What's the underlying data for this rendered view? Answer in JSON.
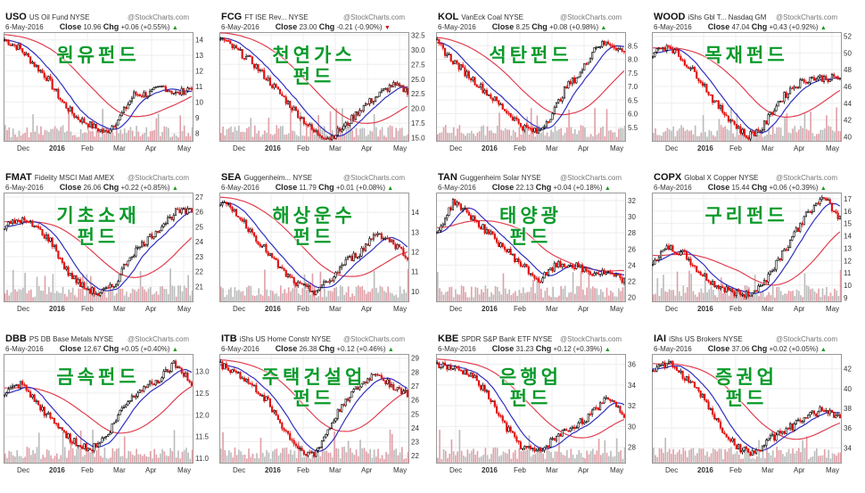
{
  "watermark": "@StockCharts.com",
  "date": "6-May-2016",
  "close_label": "Close",
  "chg_label": "Chg",
  "x_ticks": [
    "Dec",
    "2016",
    "Feb",
    "Mar",
    "Apr",
    "May"
  ],
  "colors": {
    "ma_short": "#3030c0",
    "ma_long": "#e04050",
    "up": "#000000",
    "down": "#e01010",
    "volume": "#e0a0a8",
    "label": "#0a9a2a"
  },
  "chart_data": [
    {
      "type": "candlestick",
      "symbol": "USO",
      "name": "US Oil Fund",
      "exchange": "NYSE",
      "close": "10.96",
      "chg": "+0.06 (+0.55%)",
      "dir": "up",
      "label": "원유펀드",
      "ylim": [
        7.5,
        14.5
      ],
      "y_ticks": [
        "14",
        "13",
        "12",
        "11",
        "10",
        "9",
        "8"
      ],
      "price_path": [
        14,
        13.5,
        12.5,
        11.5,
        10,
        9,
        8.5,
        8,
        9,
        10.5,
        10.5,
        11,
        10.5,
        11
      ]
    },
    {
      "type": "candlestick",
      "symbol": "FCG",
      "name": "FT ISE Rev...",
      "exchange": "NYSE",
      "close": "23.00",
      "chg": "-0.21 (-0.90%)",
      "dir": "down",
      "label": "천연가스 펀드",
      "ylim": [
        14.5,
        33
      ],
      "y_ticks": [
        "32.5",
        "30.0",
        "27.5",
        "25.0",
        "22.5",
        "20.0",
        "17.5",
        "15.0"
      ],
      "price_path": [
        32,
        30,
        28,
        25,
        22,
        19,
        16,
        15,
        17,
        20,
        22,
        24,
        23
      ]
    },
    {
      "type": "candlestick",
      "symbol": "KOL",
      "name": "VanEck Coal",
      "exchange": "NYSE",
      "close": "8.25",
      "chg": "+0.08 (+0.98%)",
      "dir": "up",
      "label": "석탄펀드",
      "ylim": [
        5,
        9
      ],
      "y_ticks": [
        "8.5",
        "8.0",
        "7.5",
        "7.0",
        "6.5",
        "6.0",
        "5.5"
      ],
      "price_path": [
        8.6,
        8,
        7.5,
        7,
        6.5,
        6,
        5.5,
        5.3,
        6,
        7,
        7.5,
        8.5,
        8.6,
        8.25
      ]
    },
    {
      "type": "candlestick",
      "symbol": "WOOD",
      "name": "iShs Gbl T...",
      "exchange": "Nasdaq GM",
      "close": "47.04",
      "chg": "+0.43 (+0.92%)",
      "dir": "up",
      "label": "목재펀드",
      "ylim": [
        39.5,
        52.5
      ],
      "y_ticks": [
        "52",
        "50",
        "48",
        "46",
        "44",
        "42",
        "40"
      ],
      "price_path": [
        50,
        51,
        49,
        47,
        44,
        42,
        40,
        41,
        44,
        46,
        47,
        47,
        47
      ]
    },
    {
      "type": "candlestick",
      "symbol": "FMAT",
      "name": "Fidelity MSCI Matl",
      "exchange": "AMEX",
      "close": "26.06",
      "chg": "+0.22 (+0.85%)",
      "dir": "up",
      "label": "기초소재 펀드",
      "ylim": [
        20,
        27.3
      ],
      "y_ticks": [
        "27",
        "26",
        "25",
        "24",
        "23",
        "22",
        "21"
      ],
      "price_path": [
        25,
        25.5,
        25,
        24,
        22,
        21,
        20.5,
        21,
        23,
        24,
        25,
        26,
        26
      ]
    },
    {
      "type": "candlestick",
      "symbol": "SEA",
      "name": "Guggenheim...",
      "exchange": "NYSE",
      "close": "11.79",
      "chg": "+0.01 (+0.08%)",
      "dir": "up",
      "label": "해상운수 펀드",
      "ylim": [
        9.5,
        15
      ],
      "y_ticks": [
        "14",
        "13",
        "12",
        "11",
        "10"
      ],
      "price_path": [
        14.5,
        14,
        13,
        12,
        11,
        10.3,
        10,
        10.5,
        11.5,
        12,
        13,
        12.5,
        11.8
      ]
    },
    {
      "type": "candlestick",
      "symbol": "TAN",
      "name": "Guggenheim Solar",
      "exchange": "NYSE",
      "close": "22.13",
      "chg": "+0.04 (+0.18%)",
      "dir": "up",
      "label": "태양광 펀드",
      "ylim": [
        19.5,
        33
      ],
      "y_ticks": [
        "32",
        "30",
        "28",
        "26",
        "24",
        "22",
        "20"
      ],
      "price_path": [
        28,
        32,
        30,
        28,
        26,
        24,
        22,
        24,
        24,
        23,
        23,
        22
      ]
    },
    {
      "type": "candlestick",
      "symbol": "COPX",
      "name": "Global X Copper",
      "exchange": "NYSE",
      "close": "15.44",
      "chg": "+0.06 (+0.39%)",
      "dir": "up",
      "label": "구리펀드",
      "ylim": [
        8.7,
        17.5
      ],
      "y_ticks": [
        "17",
        "16",
        "15",
        "14",
        "13",
        "12",
        "11",
        "10",
        "9"
      ],
      "price_path": [
        12,
        13,
        12.5,
        11,
        10,
        9.5,
        9.2,
        10,
        12,
        14,
        16,
        17,
        15.4
      ]
    },
    {
      "type": "candlestick",
      "symbol": "DBB",
      "name": "PS DB Base Metals",
      "exchange": "NYSE",
      "close": "12.67",
      "chg": "+0.05 (+0.40%)",
      "dir": "up",
      "label": "금속펀드",
      "ylim": [
        10.9,
        13.4
      ],
      "y_ticks": [
        "13.0",
        "12.5",
        "12.0",
        "11.5",
        "11.0"
      ],
      "price_path": [
        12.5,
        12.7,
        12.2,
        11.8,
        11.4,
        11.2,
        11.5,
        12.2,
        12.6,
        12.8,
        13.2,
        12.7
      ]
    },
    {
      "type": "candlestick",
      "symbol": "ITB",
      "name": "iShs US Home Constr",
      "exchange": "NYSE",
      "close": "26.38",
      "chg": "+0.12 (+0.46%)",
      "dir": "up",
      "label": "주택건설업 펀드",
      "ylim": [
        21.5,
        29.3
      ],
      "y_ticks": [
        "29",
        "28",
        "27",
        "26",
        "25",
        "24",
        "23",
        "22"
      ],
      "price_path": [
        28.5,
        28,
        27,
        26,
        24,
        22.5,
        22,
        24,
        26,
        27,
        28,
        27,
        26.4
      ]
    },
    {
      "type": "candlestick",
      "symbol": "KBE",
      "name": "SPDR S&P Bank ETF",
      "exchange": "NYSE",
      "close": "31.23",
      "chg": "+0.12 (+0.39%)",
      "dir": "up",
      "label": "은행업 펀드",
      "ylim": [
        26.5,
        37
      ],
      "y_ticks": [
        "36",
        "34",
        "32",
        "30",
        "28"
      ],
      "price_path": [
        36,
        35.5,
        35,
        33,
        30,
        28,
        27.5,
        29,
        30,
        31,
        33,
        31.2
      ]
    },
    {
      "type": "candlestick",
      "symbol": "IAI",
      "name": "iShs US Brokers",
      "exchange": "NYSE",
      "close": "37.06",
      "chg": "+0.02 (+0.05%)",
      "dir": "up",
      "label": "증권업 펀드",
      "ylim": [
        32.5,
        43.5
      ],
      "y_ticks": [
        "42",
        "40",
        "38",
        "36",
        "34"
      ],
      "price_path": [
        42,
        42.5,
        41,
        39,
        36,
        34,
        33.5,
        35,
        36,
        37,
        38,
        37
      ]
    }
  ]
}
